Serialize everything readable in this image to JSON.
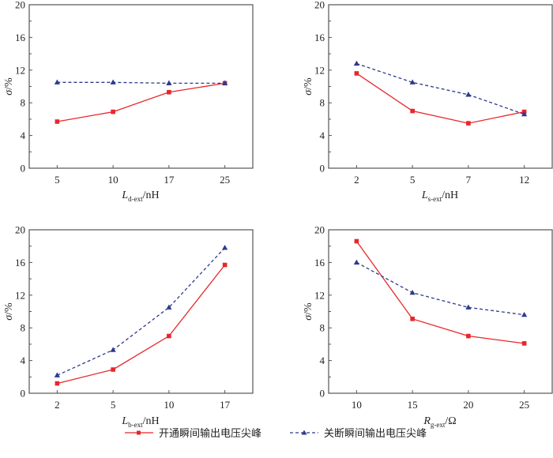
{
  "legend": {
    "items": [
      {
        "label": "开通瞬间输出电压尖峰",
        "color": "#e8262b",
        "marker": "square",
        "dash": "solid"
      },
      {
        "label": "关断瞬间输出电压尖峰",
        "color": "#2e3a8c",
        "marker": "triangle",
        "dash": "dashed"
      }
    ],
    "placement": "bottom-center"
  },
  "chart_data": [
    {
      "type": "line",
      "panel": "top-left",
      "categories": [
        "5",
        "10",
        "17",
        "25"
      ],
      "xlabel": {
        "main": "L",
        "sub": "d-ext",
        "unit": "/nH"
      },
      "ylabel": "σ/%",
      "ylim": [
        0,
        20
      ],
      "yticks": [
        "0",
        "4",
        "8",
        "12",
        "16",
        "20"
      ],
      "grid": false,
      "series": [
        {
          "name": "开通瞬间输出电压尖峰",
          "values": [
            5.7,
            6.9,
            9.3,
            10.4
          ]
        },
        {
          "name": "关断瞬间输出电压尖峰",
          "values": [
            10.5,
            10.5,
            10.4,
            10.4
          ]
        }
      ]
    },
    {
      "type": "line",
      "panel": "top-right",
      "categories": [
        "2",
        "5",
        "7",
        "12"
      ],
      "xlabel": {
        "main": "L",
        "sub": "s-ext",
        "unit": "/nH"
      },
      "ylabel": "σ/%",
      "ylim": [
        0,
        20
      ],
      "yticks": [
        "0",
        "4",
        "8",
        "12",
        "16",
        "20"
      ],
      "grid": false,
      "series": [
        {
          "name": "开通瞬间输出电压尖峰",
          "values": [
            11.6,
            7.0,
            5.5,
            6.9
          ]
        },
        {
          "name": "关断瞬间输出电压尖峰",
          "values": [
            12.8,
            10.5,
            9.0,
            6.6
          ]
        }
      ]
    },
    {
      "type": "line",
      "panel": "bottom-left",
      "categories": [
        "2",
        "5",
        "10",
        "17"
      ],
      "xlabel": {
        "main": "L",
        "sub": "b-ext",
        "unit": "/nH"
      },
      "ylabel": "σ/%",
      "ylim": [
        0,
        20
      ],
      "yticks": [
        "0",
        "4",
        "8",
        "12",
        "16",
        "20"
      ],
      "grid": false,
      "series": [
        {
          "name": "开通瞬间输出电压尖峰",
          "values": [
            1.2,
            2.9,
            7.0,
            15.7
          ]
        },
        {
          "name": "关断瞬间输出电压尖峰",
          "values": [
            2.2,
            5.3,
            10.5,
            17.8
          ]
        }
      ]
    },
    {
      "type": "line",
      "panel": "bottom-right",
      "categories": [
        "10",
        "15",
        "20",
        "25"
      ],
      "xlabel": {
        "main": "R",
        "sub": "g-ext",
        "unit": "/Ω"
      },
      "ylabel": "σ/%",
      "ylim": [
        0,
        20
      ],
      "yticks": [
        "0",
        "4",
        "8",
        "12",
        "16",
        "20"
      ],
      "grid": false,
      "series": [
        {
          "name": "开通瞬间输出电压尖峰",
          "values": [
            18.6,
            9.1,
            7.0,
            6.1
          ]
        },
        {
          "name": "关断瞬间输出电压尖峰",
          "values": [
            16.0,
            12.3,
            10.5,
            9.6
          ]
        }
      ]
    }
  ]
}
